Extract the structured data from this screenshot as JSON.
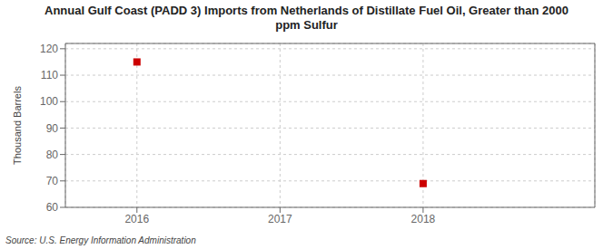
{
  "chart_data": {
    "type": "scatter",
    "title": "Annual Gulf Coast (PADD 3) Imports from Netherlands of Distillate Fuel Oil, Greater than 2000\nppm Sulfur",
    "y_label": "Thousand Barrels",
    "source": "Source: U.S. Energy Information Administration",
    "x": [
      2016,
      2018
    ],
    "values": [
      115,
      69
    ],
    "color": "#cc0000",
    "marker": "square",
    "xlim": [
      2015.5,
      2019.2
    ],
    "xticks": [
      2016,
      2017,
      2018
    ],
    "ylim": [
      60,
      122
    ],
    "yticks": [
      60,
      70,
      80,
      90,
      100,
      110,
      120
    ],
    "grid": true
  }
}
